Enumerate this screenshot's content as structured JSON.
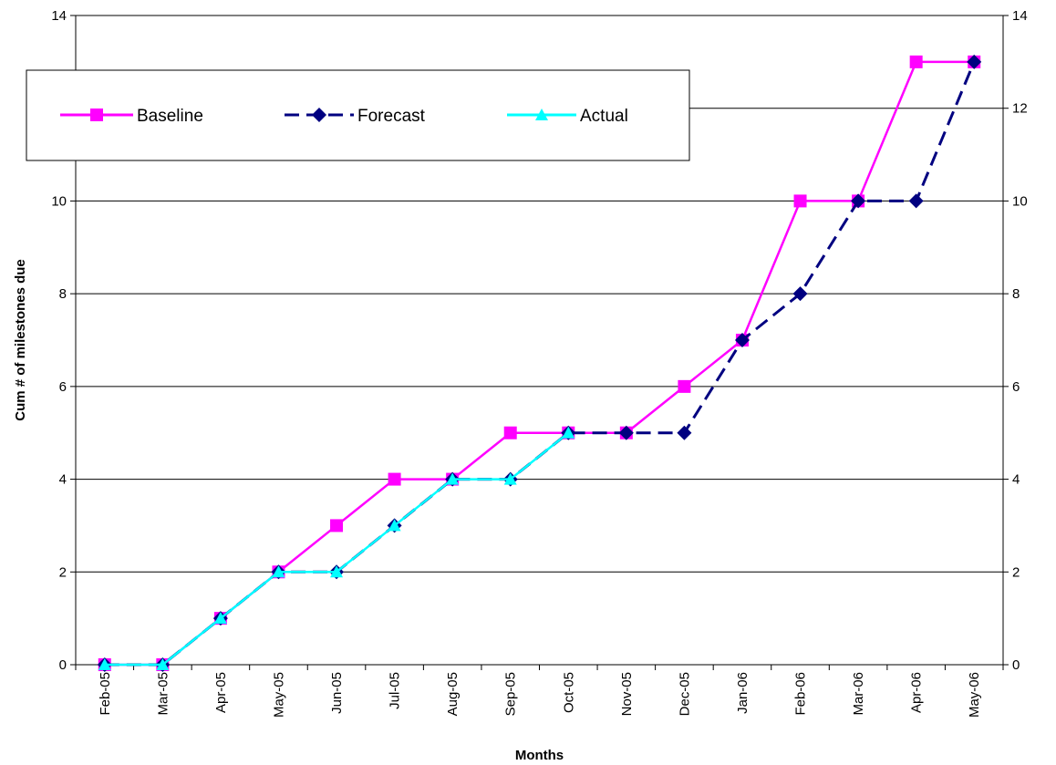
{
  "chart_data": {
    "type": "line",
    "title": "",
    "xlabel": "Months",
    "ylabel": "Cum # of milestones due",
    "ylim": [
      0,
      14
    ],
    "yticks": [
      0,
      2,
      4,
      6,
      8,
      10,
      12,
      14
    ],
    "grid": "horizontal",
    "secondary_y_axis": true,
    "legend_position": "top-left",
    "categories": [
      "Feb-05",
      "Mar-05",
      "Apr-05",
      "May-05",
      "Jun-05",
      "Jul-05",
      "Aug-05",
      "Sep-05",
      "Oct-05",
      "Nov-05",
      "Dec-05",
      "Jan-06",
      "Feb-06",
      "Mar-06",
      "Apr-06",
      "May-06"
    ],
    "series": [
      {
        "name": "Baseline",
        "color": "#ff00ff",
        "marker": "square",
        "line_style": "solid",
        "values": [
          0,
          0,
          1,
          2,
          3,
          4,
          4,
          5,
          5,
          5,
          6,
          7,
          10,
          10,
          13,
          13
        ]
      },
      {
        "name": "Forecast",
        "color": "#000080",
        "marker": "diamond",
        "line_style": "dashed",
        "values": [
          0,
          0,
          1,
          2,
          2,
          3,
          4,
          4,
          5,
          5,
          5,
          7,
          8,
          10,
          10,
          13
        ]
      },
      {
        "name": "Actual",
        "color": "#00ffff",
        "marker": "triangle",
        "line_style": "solid",
        "values": [
          0,
          0,
          1,
          2,
          2,
          3,
          4,
          4,
          5,
          null,
          null,
          null,
          null,
          null,
          null,
          null
        ]
      }
    ]
  }
}
